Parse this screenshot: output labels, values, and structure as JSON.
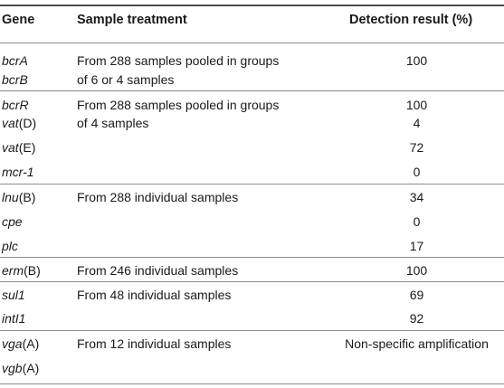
{
  "table": {
    "headers": {
      "gene": "Gene",
      "treatment": "Sample treatment",
      "result": "Detection result (%)"
    },
    "genes": [
      {
        "it": "bcrA",
        "rest": ""
      },
      {
        "it": "bcrB",
        "rest": ""
      },
      {
        "it": "bcrR",
        "rest": ""
      },
      {
        "it": "vat",
        "rest": "(D)"
      },
      {
        "it": "vat",
        "rest": "(E)"
      },
      {
        "it": "mcr-1",
        "rest": ""
      },
      {
        "it": "lnu",
        "rest": "(B)"
      },
      {
        "it": "cpe",
        "rest": ""
      },
      {
        "it": "plc",
        "rest": ""
      },
      {
        "it": "erm",
        "rest": "(B)"
      },
      {
        "it": "sul1",
        "rest": ""
      },
      {
        "it": "intI1",
        "rest": ""
      },
      {
        "it": "vga",
        "rest": "(A)"
      },
      {
        "it": "vgb",
        "rest": "(A)"
      }
    ],
    "treatments": [
      "From 288 samples pooled in groups",
      "of 6 or 4 samples",
      "From 288 samples pooled in groups",
      "of 4 samples",
      "From 288 individual samples",
      "From 246 individual samples",
      "From 48 individual samples",
      "From 12 individual samples"
    ],
    "results": [
      "100",
      "100",
      "4",
      "72",
      "0",
      "34",
      "0",
      "17",
      "100",
      "69",
      "92",
      "Non-specific amplification"
    ]
  }
}
